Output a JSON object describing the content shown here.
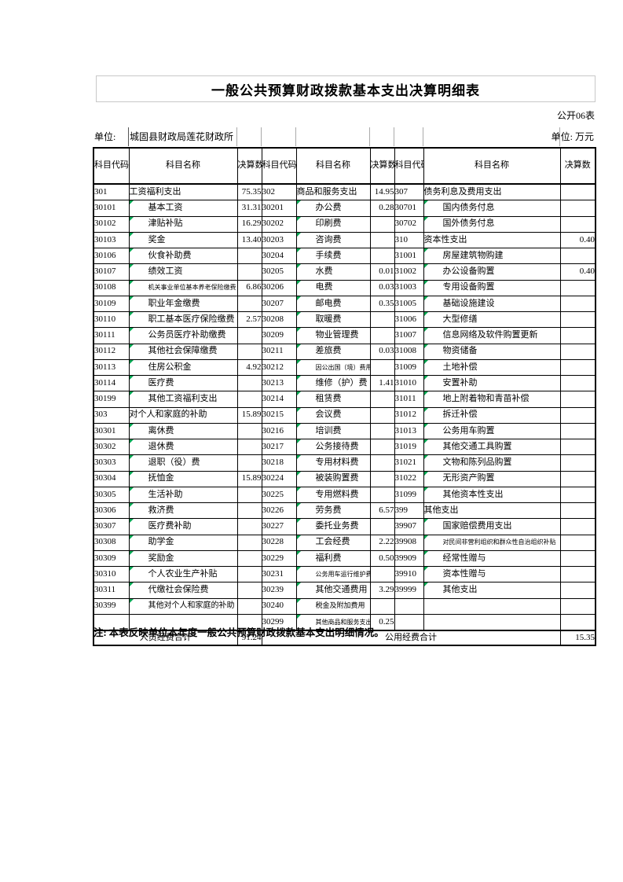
{
  "page": {
    "title": "一般公共预算财政拨款基本支出决算明细表",
    "form_code": "公开06表",
    "unit_label": "单位:",
    "unit_name": "城固县财政局莲花财政所",
    "unit_of_measure": "单位: 万元",
    "note": "注: 本表反映单位本年度一般公共预算财政拨款基本支出明细情况。"
  },
  "colors": {
    "border": "#000000",
    "comment_marker_green": "#00a651",
    "title_box_border": "#c8c8c8"
  },
  "table": {
    "header": [
      "科目代码",
      "科目名称",
      "决算数",
      "科目代码",
      "科目名称",
      "决算数",
      "科目代码",
      "科目名称",
      "决算数"
    ],
    "rows": [
      [
        {
          "code": "301",
          "name": "工资福利支出",
          "value": "75.35",
          "sub": false
        },
        {
          "code": "302",
          "name": "商品和服务支出",
          "value": "14.95",
          "sub": false
        },
        {
          "code": "307",
          "name": "债务利息及费用支出",
          "value": "",
          "sub": false
        }
      ],
      [
        {
          "code": "30101",
          "name": "基本工资",
          "value": "31.31",
          "sub": true
        },
        {
          "code": "30201",
          "name": "办公费",
          "value": "0.28",
          "sub": true
        },
        {
          "code": "30701",
          "name": "国内债务付息",
          "value": "",
          "sub": true
        }
      ],
      [
        {
          "code": "30102",
          "name": "津贴补贴",
          "value": "16.29",
          "sub": true
        },
        {
          "code": "30202",
          "name": "印刷费",
          "value": "",
          "sub": true
        },
        {
          "code": "30702",
          "name": "国外债务付息",
          "value": "",
          "sub": true
        }
      ],
      [
        {
          "code": "30103",
          "name": "奖金",
          "value": "13.40",
          "sub": true
        },
        {
          "code": "30203",
          "name": "咨询费",
          "value": "",
          "sub": true
        },
        {
          "code": "310",
          "name": "资本性支出",
          "value": "0.40",
          "sub": false
        }
      ],
      [
        {
          "code": "30106",
          "name": "伙食补助费",
          "value": "",
          "sub": true
        },
        {
          "code": "30204",
          "name": "手续费",
          "value": "",
          "sub": true
        },
        {
          "code": "31001",
          "name": "房屋建筑物购建",
          "value": "",
          "sub": true
        }
      ],
      [
        {
          "code": "30107",
          "name": "绩效工资",
          "value": "",
          "sub": true
        },
        {
          "code": "30205",
          "name": "水费",
          "value": "0.01",
          "sub": true
        },
        {
          "code": "31002",
          "name": "办公设备购置",
          "value": "0.40",
          "sub": true
        }
      ],
      [
        {
          "code": "30108",
          "name": "机关事业单位基本养老保险缴费",
          "value": "6.86",
          "sub": true
        },
        {
          "code": "30206",
          "name": "电费",
          "value": "0.03",
          "sub": true
        },
        {
          "code": "31003",
          "name": "专用设备购置",
          "value": "",
          "sub": true
        }
      ],
      [
        {
          "code": "30109",
          "name": "职业年金缴费",
          "value": "",
          "sub": true
        },
        {
          "code": "30207",
          "name": "邮电费",
          "value": "0.35",
          "sub": true
        },
        {
          "code": "31005",
          "name": "基础设施建设",
          "value": "",
          "sub": true
        }
      ],
      [
        {
          "code": "30110",
          "name": "职工基本医疗保险缴费",
          "value": "2.57",
          "sub": true
        },
        {
          "code": "30208",
          "name": "取暖费",
          "value": "",
          "sub": true
        },
        {
          "code": "31006",
          "name": "大型修缮",
          "value": "",
          "sub": true
        }
      ],
      [
        {
          "code": "30111",
          "name": "公务员医疗补助缴费",
          "value": "",
          "sub": true
        },
        {
          "code": "30209",
          "name": "物业管理费",
          "value": "",
          "sub": true
        },
        {
          "code": "31007",
          "name": "信息网络及软件购置更新",
          "value": "",
          "sub": true
        }
      ],
      [
        {
          "code": "30112",
          "name": "其他社会保障缴费",
          "value": "",
          "sub": true
        },
        {
          "code": "30211",
          "name": "差旅费",
          "value": "0.03",
          "sub": true
        },
        {
          "code": "31008",
          "name": "物资储备",
          "value": "",
          "sub": true
        }
      ],
      [
        {
          "code": "30113",
          "name": "住房公积金",
          "value": "4.92",
          "sub": true
        },
        {
          "code": "30212",
          "name": "因公出国（境）费用",
          "value": "",
          "sub": true
        },
        {
          "code": "31009",
          "name": "土地补偿",
          "value": "",
          "sub": true
        }
      ],
      [
        {
          "code": "30114",
          "name": "医疗费",
          "value": "",
          "sub": true
        },
        {
          "code": "30213",
          "name": "维修（护）费",
          "value": "1.41",
          "sub": true
        },
        {
          "code": "31010",
          "name": "安置补助",
          "value": "",
          "sub": true
        }
      ],
      [
        {
          "code": "30199",
          "name": "其他工资福利支出",
          "value": "",
          "sub": true
        },
        {
          "code": "30214",
          "name": "租赁费",
          "value": "",
          "sub": true
        },
        {
          "code": "31011",
          "name": "地上附着物和青苗补偿",
          "value": "",
          "sub": true
        }
      ],
      [
        {
          "code": "303",
          "name": "对个人和家庭的补助",
          "value": "15.89",
          "sub": false
        },
        {
          "code": "30215",
          "name": "会议费",
          "value": "",
          "sub": true
        },
        {
          "code": "31012",
          "name": "拆迁补偿",
          "value": "",
          "sub": true
        }
      ],
      [
        {
          "code": "30301",
          "name": "离休费",
          "value": "",
          "sub": true
        },
        {
          "code": "30216",
          "name": "培训费",
          "value": "",
          "sub": true
        },
        {
          "code": "31013",
          "name": "公务用车购置",
          "value": "",
          "sub": true
        }
      ],
      [
        {
          "code": "30302",
          "name": "退休费",
          "value": "",
          "sub": true
        },
        {
          "code": "30217",
          "name": "公务接待费",
          "value": "",
          "sub": true
        },
        {
          "code": "31019",
          "name": "其他交通工具购置",
          "value": "",
          "sub": true
        }
      ],
      [
        {
          "code": "30303",
          "name": "退职（役）费",
          "value": "",
          "sub": true
        },
        {
          "code": "30218",
          "name": "专用材料费",
          "value": "",
          "sub": true
        },
        {
          "code": "31021",
          "name": "文物和陈列品购置",
          "value": "",
          "sub": true
        }
      ],
      [
        {
          "code": "30304",
          "name": "抚恤金",
          "value": "15.89",
          "sub": true
        },
        {
          "code": "30224",
          "name": "被装购置费",
          "value": "",
          "sub": true
        },
        {
          "code": "31022",
          "name": "无形资产购置",
          "value": "",
          "sub": true
        }
      ],
      [
        {
          "code": "30305",
          "name": "生活补助",
          "value": "",
          "sub": true
        },
        {
          "code": "30225",
          "name": "专用燃料费",
          "value": "",
          "sub": true
        },
        {
          "code": "31099",
          "name": "其他资本性支出",
          "value": "",
          "sub": true
        }
      ],
      [
        {
          "code": "30306",
          "name": "救济费",
          "value": "",
          "sub": true
        },
        {
          "code": "30226",
          "name": "劳务费",
          "value": "6.57",
          "sub": true
        },
        {
          "code": "399",
          "name": "其他支出",
          "value": "",
          "sub": false
        }
      ],
      [
        {
          "code": "30307",
          "name": "医疗费补助",
          "value": "",
          "sub": true
        },
        {
          "code": "30227",
          "name": "委托业务费",
          "value": "",
          "sub": true
        },
        {
          "code": "39907",
          "name": "国家赔偿费用支出",
          "value": "",
          "sub": true
        }
      ],
      [
        {
          "code": "30308",
          "name": "助学金",
          "value": "",
          "sub": true
        },
        {
          "code": "30228",
          "name": "工会经费",
          "value": "2.22",
          "sub": true
        },
        {
          "code": "39908",
          "name": "对民间非营利组织和群众性自治组织补贴",
          "value": "",
          "sub": true
        }
      ],
      [
        {
          "code": "30309",
          "name": "奖励金",
          "value": "",
          "sub": true
        },
        {
          "code": "30229",
          "name": "福利费",
          "value": "0.50",
          "sub": true
        },
        {
          "code": "39909",
          "name": "经常性赠与",
          "value": "",
          "sub": true
        }
      ],
      [
        {
          "code": "30310",
          "name": "个人农业生产补贴",
          "value": "",
          "sub": true
        },
        {
          "code": "30231",
          "name": "公务用车运行维护费",
          "value": "",
          "sub": true
        },
        {
          "code": "39910",
          "name": "资本性赠与",
          "value": "",
          "sub": true
        }
      ],
      [
        {
          "code": "30311",
          "name": "代缴社会保险费",
          "value": "",
          "sub": true
        },
        {
          "code": "30239",
          "name": "其他交通费用",
          "value": "3.29",
          "sub": true
        },
        {
          "code": "39999",
          "name": "其他支出",
          "value": "",
          "sub": true
        }
      ],
      [
        {
          "code": "30399",
          "name": "其他对个人和家庭的补助",
          "value": "",
          "sub": true
        },
        {
          "code": "30240",
          "name": "税金及附加费用",
          "value": "",
          "sub": true
        },
        {
          "code": "",
          "name": "",
          "value": "",
          "sub": false
        }
      ],
      [
        {
          "code": "",
          "name": "",
          "value": "",
          "sub": false
        },
        {
          "code": "30299",
          "name": "其他商品和服务支出",
          "value": "0.25",
          "sub": true
        },
        {
          "code": "",
          "name": "",
          "value": "",
          "sub": false
        }
      ]
    ],
    "summary": {
      "personnel_label": "人员经费合计",
      "personnel_total": "91.24",
      "public_label": "公用经费合计",
      "public_total": "15.35"
    }
  }
}
